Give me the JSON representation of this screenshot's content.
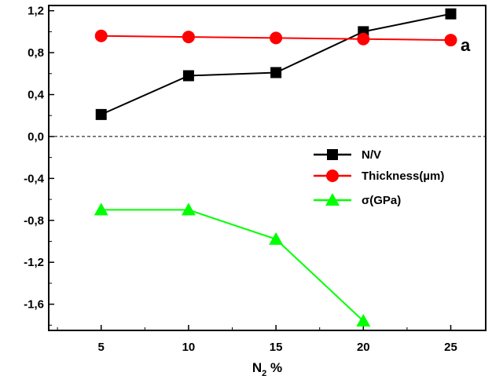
{
  "chart_data": {
    "type": "line",
    "title": "",
    "panel_label": "a",
    "xlabel": {
      "main": "N",
      "subscript": "2",
      "suffix": " %"
    },
    "ylabel": "",
    "x": [
      5,
      10,
      15,
      20,
      25
    ],
    "xlim": [
      2,
      27
    ],
    "ylim": [
      -1.85,
      1.25
    ],
    "x_ticks": [
      5,
      10,
      15,
      20,
      25
    ],
    "x_tick_labels": [
      "5",
      "10",
      "15",
      "20",
      "25"
    ],
    "y_ticks": [
      -1.6,
      -1.2,
      -0.8,
      -0.4,
      0.0,
      0.4,
      0.8,
      1.2
    ],
    "y_tick_labels": [
      "-1,6",
      "-1,2",
      "-0,8",
      "-0,4",
      "0,0",
      "0,4",
      "0,8",
      "1,2"
    ],
    "zero_line": "dashed",
    "grid": false,
    "legend_position": "right",
    "series": [
      {
        "name": "N/V",
        "marker": "square",
        "color": "#000000",
        "x": [
          5,
          10,
          15,
          20,
          25
        ],
        "values": [
          0.21,
          0.58,
          0.61,
          1.0,
          1.17
        ]
      },
      {
        "name": "Thickness(µm)",
        "marker": "circle",
        "color": "#ff0000",
        "x": [
          5,
          10,
          15,
          20,
          25
        ],
        "values": [
          0.96,
          0.95,
          0.94,
          0.93,
          0.92
        ]
      },
      {
        "name": "σ(GPa)",
        "marker": "triangle",
        "color": "#00ff00",
        "x": [
          5,
          10,
          15,
          20
        ],
        "values": [
          -0.7,
          -0.7,
          -0.98,
          -1.76
        ]
      }
    ]
  }
}
